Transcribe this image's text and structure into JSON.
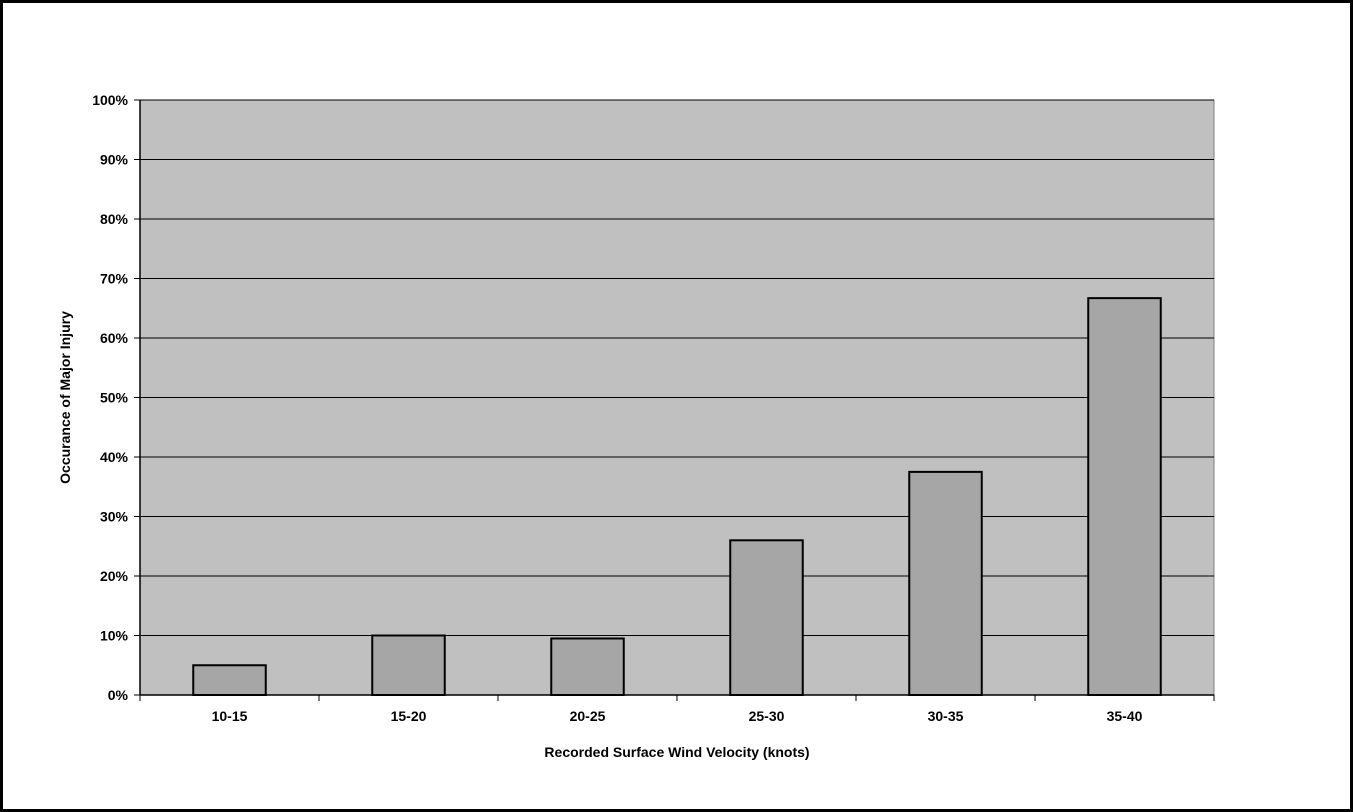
{
  "chart_data": {
    "type": "bar",
    "title": "",
    "xlabel": "Recorded Surface Wind Velocity (knots)",
    "ylabel": "Occurance of Major Injury",
    "categories": [
      "10-15",
      "15-20",
      "20-25",
      "25-30",
      "30-35",
      "35-40"
    ],
    "values": [
      5,
      10,
      9.5,
      26,
      37.5,
      66.7
    ],
    "ylim": [
      0,
      100
    ],
    "yticks": [
      "0%",
      "10%",
      "20%",
      "30%",
      "40%",
      "50%",
      "60%",
      "70%",
      "80%",
      "90%",
      "100%"
    ],
    "grid": true,
    "legend": "none",
    "colors": {
      "plot_background": "#c0c0c0",
      "bar_fill": "#a6a6a6",
      "bar_stroke": "#000000",
      "gridline": "#000000"
    }
  }
}
